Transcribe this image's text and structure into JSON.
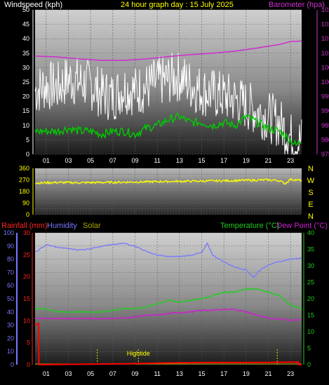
{
  "header": {
    "windspeed_label": "Windspeed (kph)",
    "title": "24 hour graph day : 15 July 2025",
    "barometer_label": "Barometer (hpa)"
  },
  "bottom_header": {
    "rainfall_label": "Rainfall (mm)",
    "humidity_label": "Humidity",
    "solar_label": "Solar",
    "temperature_label": "Temperature (°C)",
    "dewpoint_label": "Dew Point (°C)"
  },
  "colors": {
    "windspeed": "#ffffff",
    "wind_avg": "#00cc00",
    "barometer": "#cc33cc",
    "direction": "#ffff00",
    "rainfall": "#ff0000",
    "humidity": "#7777ff",
    "solar": "#aaaa00",
    "temperature": "#22cc22",
    "dewpoint": "#cc22cc",
    "title": "#ffff00"
  },
  "chart_data": [
    {
      "id": "wind",
      "type": "line",
      "x_tick_labels": [
        "01",
        "03",
        "05",
        "07",
        "09",
        "11",
        "13",
        "15",
        "17",
        "19",
        "21",
        "23"
      ],
      "x_tick_hours": [
        1,
        3,
        5,
        7,
        9,
        11,
        13,
        15,
        17,
        19,
        21,
        23
      ],
      "xlim": [
        0,
        24
      ],
      "ylim_left": [
        0,
        50
      ],
      "yticks_left": [
        0,
        5,
        10,
        15,
        20,
        25,
        30,
        35,
        40,
        45,
        50
      ],
      "ylim_right": [
        975,
        1025
      ],
      "yticks_right": [
        975,
        980,
        985,
        990,
        995,
        1000,
        1005,
        1010,
        1015,
        1020,
        1025
      ],
      "series": [
        {
          "name": "Windspeed (kph)",
          "axis": "left",
          "x": [
            0,
            1,
            2,
            3,
            4,
            5,
            6,
            7,
            8,
            9,
            10,
            11,
            12,
            13,
            14,
            15,
            16,
            17,
            18,
            19,
            20,
            21,
            22,
            23,
            23.5,
            24
          ],
          "y": [
            22,
            24,
            23,
            26,
            25,
            24,
            21,
            20,
            23,
            22,
            23,
            25,
            26,
            27,
            24,
            22,
            21,
            20,
            19,
            17,
            15,
            13,
            11,
            6,
            4,
            5
          ]
        },
        {
          "name": "Wind average",
          "axis": "left",
          "x": [
            0,
            1,
            2,
            3,
            4,
            5,
            6,
            7,
            8,
            9,
            10,
            11,
            12,
            13,
            14,
            15,
            16,
            17,
            18,
            19,
            20,
            21,
            22,
            23,
            23.5,
            24
          ],
          "y": [
            8,
            8,
            8,
            9,
            8,
            8,
            7,
            8,
            8,
            7,
            9,
            10,
            12,
            13,
            11,
            11,
            10,
            11,
            10,
            13,
            11,
            9,
            8,
            5,
            3,
            5
          ]
        },
        {
          "name": "Barometer (hpa)",
          "axis": "right",
          "x": [
            0,
            2,
            4,
            6,
            8,
            10,
            12,
            14,
            16,
            18,
            20,
            22,
            23,
            24
          ],
          "y": [
            1009.0,
            1008.7,
            1008.0,
            1007.5,
            1007.5,
            1008.0,
            1008.8,
            1009.5,
            1010.0,
            1010.7,
            1011.8,
            1013.0,
            1014.0,
            1014.2
          ]
        }
      ]
    },
    {
      "id": "direction",
      "type": "line",
      "ylim": [
        0,
        360
      ],
      "yticks": [
        0,
        45,
        90,
        135,
        180,
        225,
        270,
        315,
        360
      ],
      "ytick_labels": [
        "0",
        "90",
        "180",
        "270",
        "360"
      ],
      "compass_labels": [
        "N",
        "W",
        "S",
        "E",
        "N"
      ],
      "series": [
        {
          "name": "Wind direction",
          "x": [
            0,
            2,
            4,
            6,
            8,
            10,
            12,
            14,
            16,
            18,
            20,
            21,
            22,
            22.5,
            23,
            24
          ],
          "y": [
            245,
            250,
            248,
            250,
            252,
            255,
            258,
            260,
            262,
            265,
            268,
            270,
            265,
            240,
            275,
            265
          ]
        }
      ]
    },
    {
      "id": "temp",
      "type": "line",
      "x_tick_labels": [
        "01",
        "03",
        "05",
        "07",
        "09",
        "11",
        "13",
        "15",
        "17",
        "19",
        "21",
        "23"
      ],
      "ylim_left": [
        0,
        100
      ],
      "yticks_left": [
        0,
        10,
        20,
        30,
        40,
        50,
        60,
        70,
        80,
        90,
        100
      ],
      "ylim_rain": [
        0,
        30
      ],
      "yticks_rain": [
        0,
        5,
        10,
        15,
        20,
        25,
        30
      ],
      "ylim_right": [
        0,
        40
      ],
      "yticks_right": [
        0,
        5,
        10,
        15,
        20,
        25,
        30,
        35,
        40
      ],
      "annotations": [
        {
          "text": "Hightide",
          "x": 9.3
        },
        {
          "text": "",
          "x": 5.6
        },
        {
          "text": "",
          "x": 21.8
        }
      ],
      "series": [
        {
          "name": "Humidity",
          "axis": "left",
          "x": [
            0,
            1,
            2,
            3,
            4,
            5,
            6,
            7,
            8,
            9,
            10,
            11,
            12,
            13,
            14,
            15,
            15.5,
            16,
            17,
            18,
            19,
            19.7,
            20,
            21,
            22,
            23,
            24
          ],
          "y": [
            85,
            91,
            89,
            88,
            87,
            88,
            90,
            91,
            92,
            90,
            86,
            83,
            82,
            82,
            83,
            85,
            92,
            83,
            78,
            74,
            72,
            66,
            70,
            76,
            78,
            80,
            81
          ]
        },
        {
          "name": "Temperature (°C)",
          "axis": "right",
          "x": [
            0,
            1,
            2,
            3,
            4,
            5,
            6,
            7,
            8,
            9,
            10,
            11,
            12,
            13,
            14,
            15,
            16,
            17,
            18,
            19,
            20,
            21,
            22,
            23,
            24
          ],
          "y": [
            17,
            17,
            16,
            16,
            16,
            16,
            16,
            16.5,
            17,
            17,
            17.5,
            18.5,
            19.5,
            19,
            19.5,
            20,
            21,
            22,
            22,
            23,
            23,
            22,
            21,
            18,
            17
          ]
        },
        {
          "name": "Dew Point (°C)",
          "axis": "right",
          "x": [
            0,
            1,
            2,
            3,
            4,
            5,
            6,
            7,
            8,
            9,
            10,
            11,
            12,
            13,
            14,
            15,
            16,
            17,
            18,
            19,
            20,
            21,
            22,
            23,
            24
          ],
          "y": [
            14,
            14,
            14,
            14,
            14,
            14,
            14,
            14,
            14.2,
            14.5,
            15,
            15,
            15.5,
            15.8,
            16,
            16.5,
            16.5,
            16.8,
            16.8,
            16,
            15,
            14,
            14,
            13.5,
            13.7
          ]
        },
        {
          "name": "Rainfall (mm)",
          "axis": "rain",
          "x": [
            0,
            0.3,
            0.35,
            0.5,
            4,
            8,
            12,
            16,
            20,
            23.7,
            23.75,
            24
          ],
          "y": [
            9,
            9.4,
            0,
            0,
            0.1,
            0.2,
            0.4,
            0.5,
            0.5,
            0.6,
            0,
            0
          ]
        },
        {
          "name": "Solar",
          "axis": "left",
          "x": [
            0,
            24
          ],
          "y": [
            0,
            0
          ]
        }
      ]
    }
  ]
}
